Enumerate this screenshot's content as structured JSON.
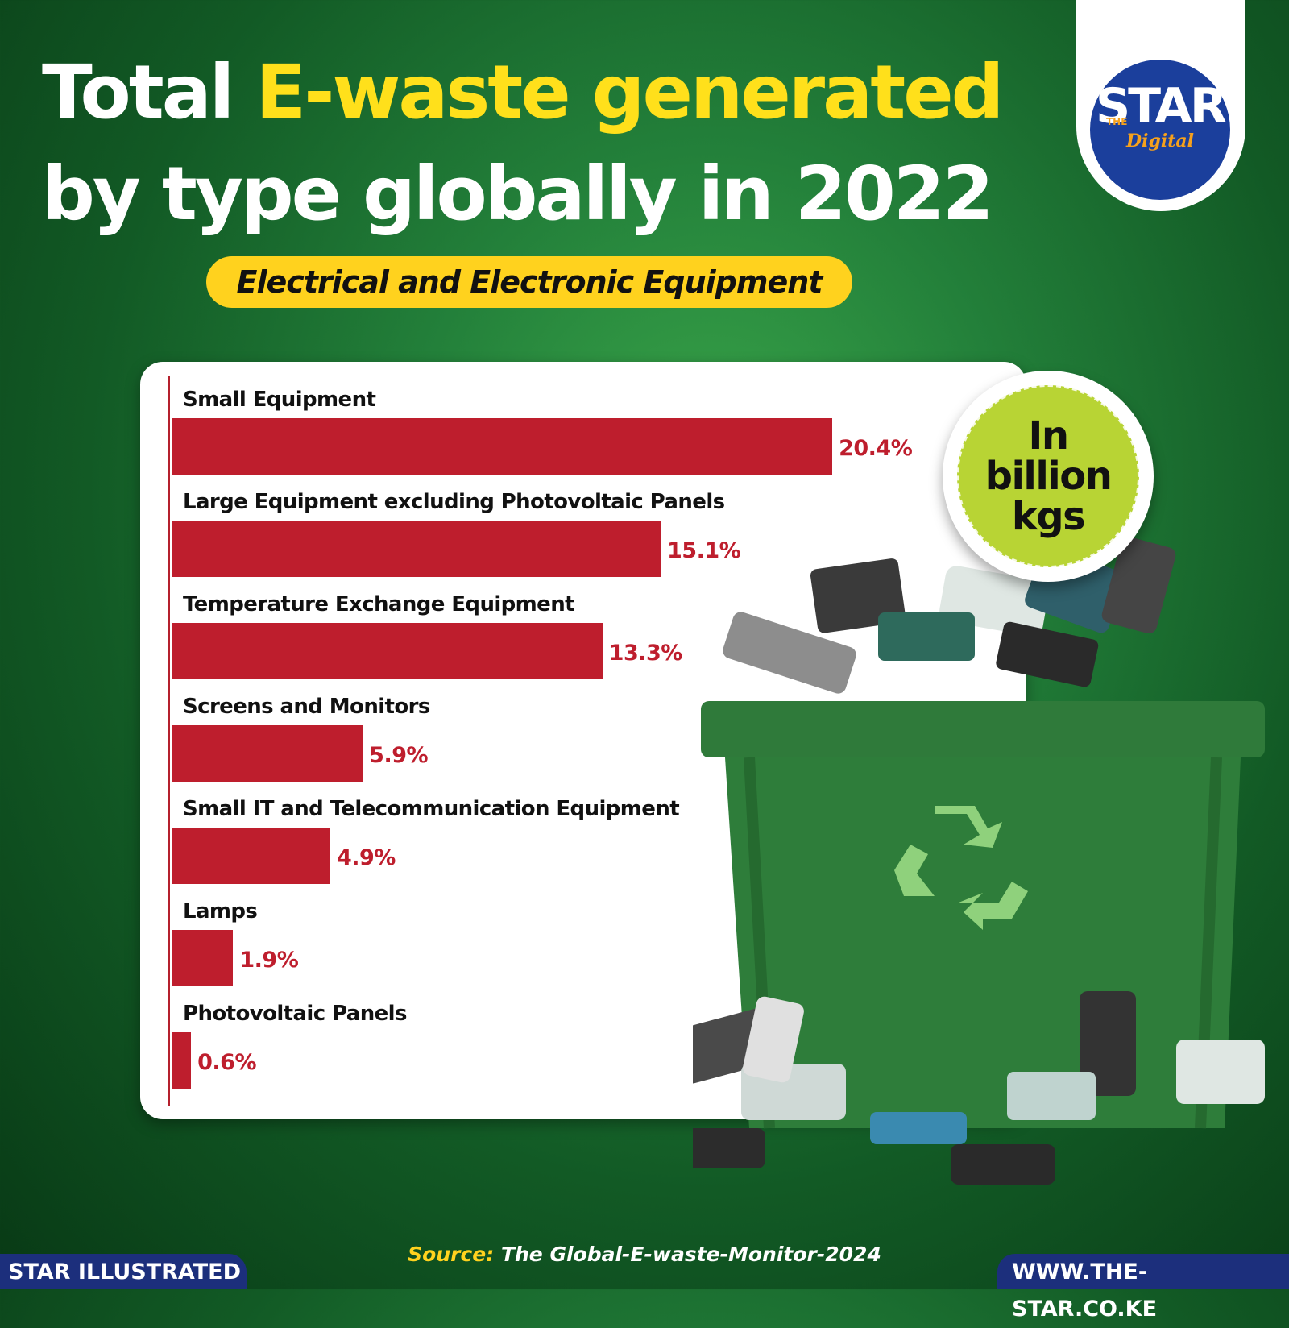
{
  "header": {
    "title_part1": "Total ",
    "title_highlight": "E-waste generated",
    "title_part2": "by type globally in 2022",
    "subtitle": "Electrical and Electronic Equipment"
  },
  "logo": {
    "the": "THE",
    "star": "STAR",
    "digital": "Digital"
  },
  "badge": {
    "line1": "In",
    "line2": "billion",
    "line3": "kgs"
  },
  "chart_data": {
    "type": "bar",
    "orientation": "horizontal",
    "categories": [
      "Small Equipment",
      "Large Equipment excluding Photovoltaic Panels",
      "Temperature Exchange Equipment",
      "Screens and Monitors",
      "Small IT and Telecommunication Equipment",
      "Lamps",
      "Photovoltaic Panels"
    ],
    "values": [
      20.4,
      15.1,
      13.3,
      5.9,
      4.9,
      1.9,
      0.6
    ],
    "value_labels": [
      "20.4%",
      "15.1%",
      "13.3%",
      "5.9%",
      "4.9%",
      "1.9%",
      "0.6%"
    ],
    "bar_color": "#be1e2d",
    "grid": false
  },
  "source": {
    "label": "Source:",
    "text": " The Global-E-waste-Monitor-2024"
  },
  "footer": {
    "left": "STAR ILLUSTRATED",
    "right": "WWW.THE-STAR.CO.KE"
  },
  "colors": {
    "background": "#1f7a35",
    "highlight": "#ffe01b",
    "pill": "#ffd21e",
    "footer": "#1c2f7c",
    "badge": "#b8d434"
  }
}
